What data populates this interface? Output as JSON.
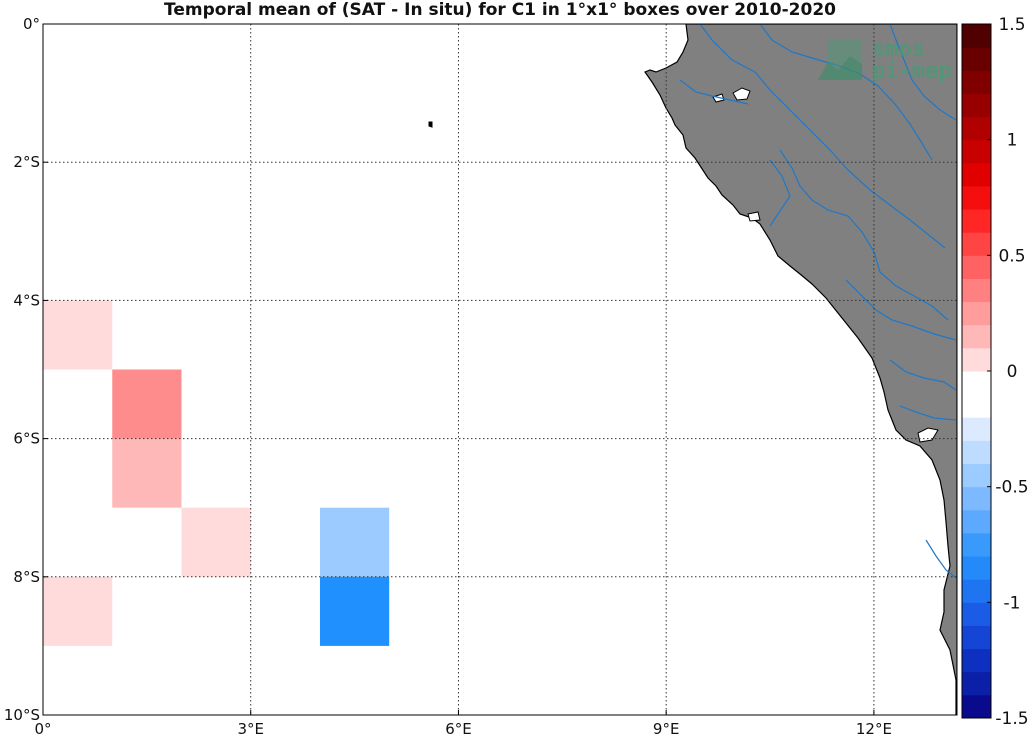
{
  "title": "Temporal mean of (SAT - In situ) for C1 in 1°x1° boxes over 2010-2020",
  "logo": {
    "line1": "smos",
    "line2": "pi-mep",
    "color": "#4a9a78"
  },
  "lat_ticks": [
    {
      "value": 0,
      "text": "0°"
    },
    {
      "value": -2,
      "text": "2°S"
    },
    {
      "value": -4,
      "text": "4°S"
    },
    {
      "value": -6,
      "text": "6°S"
    },
    {
      "value": -8,
      "text": "8°S"
    },
    {
      "value": -10,
      "text": "10°S"
    }
  ],
  "lon_ticks": [
    {
      "value": 0,
      "text": "0°"
    },
    {
      "value": 3,
      "text": "3°E"
    },
    {
      "value": 6,
      "text": "6°E"
    },
    {
      "value": 9,
      "text": "9°E"
    },
    {
      "value": 12,
      "text": "12°E"
    }
  ],
  "lon_range": [
    0,
    13.2
  ],
  "lat_range": [
    -10,
    0
  ],
  "colors": {
    "land": "#808080",
    "coast": "#000000",
    "rivers": "#1f78c8",
    "grid": "#333333"
  },
  "boxes": [
    {
      "lon": 0,
      "lat": -4,
      "value": 0.1,
      "color": "#ffdbdb"
    },
    {
      "lon": 1,
      "lat": -5,
      "value": 0.45,
      "color": "#ff8c8c"
    },
    {
      "lon": 1,
      "lat": -6,
      "value": 0.25,
      "color": "#ffb8b8"
    },
    {
      "lon": 2,
      "lat": -7,
      "value": 0.1,
      "color": "#ffdbdb"
    },
    {
      "lon": 0,
      "lat": -8,
      "value": 0.1,
      "color": "#ffdbdb"
    },
    {
      "lon": 4,
      "lat": -7,
      "value": -0.3,
      "color": "#9ccbff"
    },
    {
      "lon": 4,
      "lat": -8,
      "value": -0.65,
      "color": "#2090ff"
    }
  ],
  "colorbar": {
    "min": -1.5,
    "max": 1.5,
    "ticks": [
      {
        "value": 1.5,
        "text": "1.5"
      },
      {
        "value": 1,
        "text": "1"
      },
      {
        "value": 0.5,
        "text": "0.5"
      },
      {
        "value": 0,
        "text": "0"
      },
      {
        "value": -0.5,
        "text": "-0.5"
      },
      {
        "value": -1,
        "text": "-1"
      },
      {
        "value": -1.5,
        "text": "-1.5"
      }
    ],
    "colors": [
      "#0a0a8c",
      "#0c1fa8",
      "#0e30c0",
      "#1545d4",
      "#1a5ce6",
      "#1f74f2",
      "#2489f9",
      "#3a9afc",
      "#5ca9fd",
      "#7cb9fe",
      "#9ccbff",
      "#bddcff",
      "#dbeaff",
      "#ffffff",
      "#ffffff",
      "#ffdbdb",
      "#ffb8b8",
      "#ff9c9c",
      "#ff8080",
      "#ff6262",
      "#ff4444",
      "#ff2626",
      "#f40e0e",
      "#e00000",
      "#c80000",
      "#b00000",
      "#980000",
      "#800000",
      "#680000",
      "#500000"
    ]
  }
}
